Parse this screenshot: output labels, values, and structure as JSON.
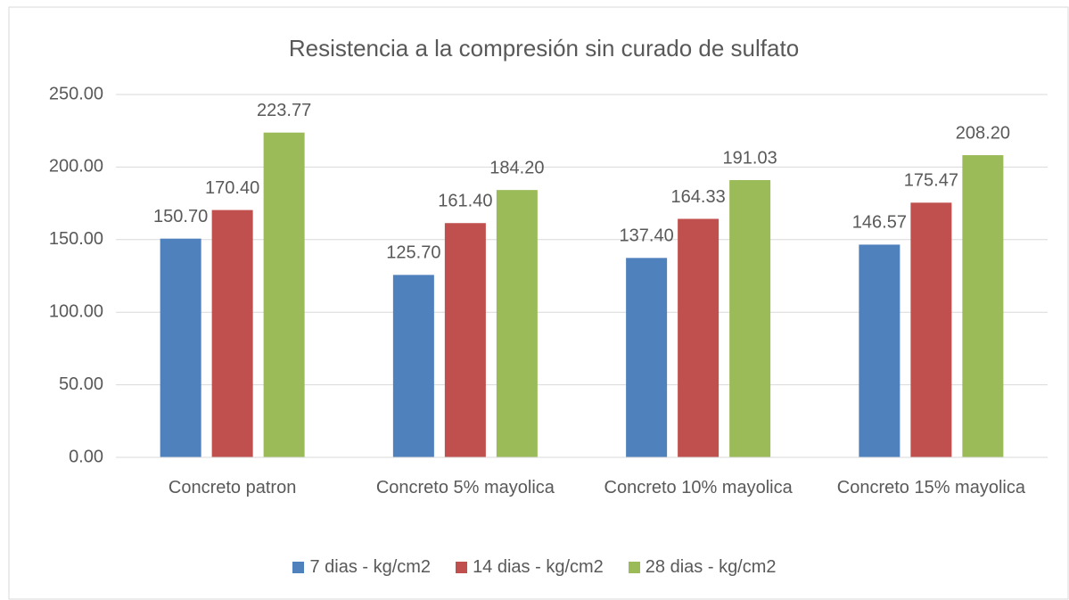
{
  "chart_data": {
    "type": "bar",
    "title": "Resistencia a la compresión sin curado de sulfato",
    "categories": [
      "Concreto patron",
      "Concreto 5% mayolica",
      "Concreto 10% mayolica",
      "Concreto 15% mayolica"
    ],
    "series": [
      {
        "name": "7 dias - kg/cm2",
        "color": "#4f81bd",
        "values": [
          150.7,
          125.7,
          137.4,
          146.57
        ],
        "value_labels": [
          "150.70",
          "125.70",
          "137.40",
          "146.57"
        ]
      },
      {
        "name": "14 dias - kg/cm2",
        "color": "#c0504d",
        "values": [
          170.4,
          161.4,
          164.33,
          175.47
        ],
        "value_labels": [
          "170.40",
          "161.40",
          "164.33",
          "175.47"
        ]
      },
      {
        "name": "28 dias - kg/cm2",
        "color": "#9bbb59",
        "values": [
          223.77,
          184.2,
          191.03,
          208.2
        ],
        "value_labels": [
          "223.77",
          "184.20",
          "191.03",
          "208.20"
        ]
      }
    ],
    "ylim": [
      0,
      250
    ],
    "yticks": [
      {
        "value": 0,
        "label": "0.00"
      },
      {
        "value": 50,
        "label": "50.00"
      },
      {
        "value": 100,
        "label": "100.00"
      },
      {
        "value": 150,
        "label": "150.00"
      },
      {
        "value": 200,
        "label": "200.00"
      },
      {
        "value": 250,
        "label": "250.00"
      }
    ],
    "grid": true,
    "legend": "bottom"
  }
}
